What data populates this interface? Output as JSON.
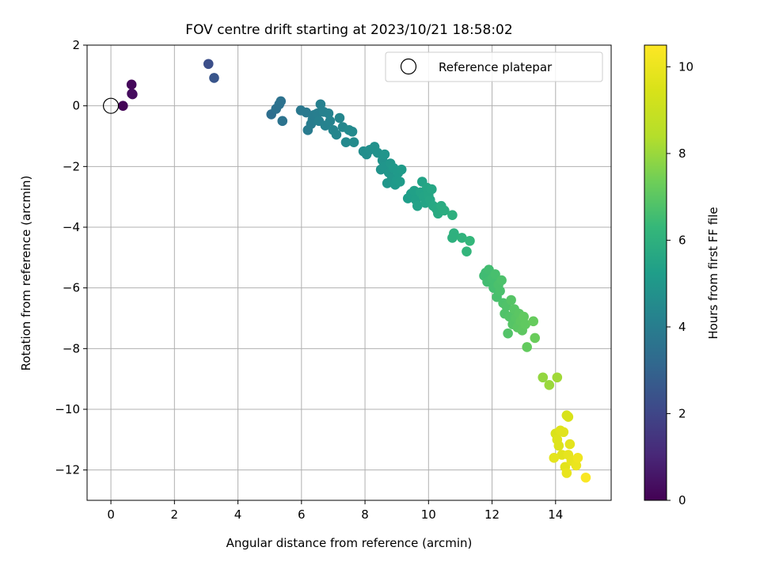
{
  "chart_data": {
    "type": "scatter",
    "title": "FOV centre drift starting at 2023/10/21 18:58:02",
    "xlabel": "Angular distance from reference (arcmin)",
    "ylabel": "Rotation from reference (arcmin)",
    "colorbar_label": "Hours from first FF file",
    "colormap": "viridis",
    "xlim": [
      -0.75,
      15.75
    ],
    "ylim": [
      -13,
      2
    ],
    "clim": [
      0,
      10.5
    ],
    "xticks": [
      0,
      2,
      4,
      6,
      8,
      10,
      12,
      14
    ],
    "yticks": [
      -12,
      -10,
      -8,
      -6,
      -4,
      -2,
      0,
      2
    ],
    "cticks": [
      0,
      2,
      4,
      6,
      8,
      10
    ],
    "grid": true,
    "legend": {
      "position": "top-right",
      "entries": [
        {
          "label": "Reference platepar",
          "marker": "open-circle"
        }
      ]
    },
    "reference_point": {
      "x": 0,
      "y": 0
    },
    "points": [
      {
        "x": 0.38,
        "y": 0.0,
        "c": 0.1
      },
      {
        "x": 0.65,
        "y": 0.7,
        "c": 0.2
      },
      {
        "x": 0.66,
        "y": 0.4,
        "c": 0.25
      },
      {
        "x": 0.68,
        "y": 0.38,
        "c": 0.3
      },
      {
        "x": 3.07,
        "y": 1.38,
        "c": 2.3
      },
      {
        "x": 3.25,
        "y": 0.92,
        "c": 2.5
      },
      {
        "x": 5.05,
        "y": -0.28,
        "c": 3.4
      },
      {
        "x": 5.2,
        "y": -0.1,
        "c": 3.5
      },
      {
        "x": 5.3,
        "y": 0.05,
        "c": 3.5
      },
      {
        "x": 5.35,
        "y": 0.15,
        "c": 3.55
      },
      {
        "x": 5.4,
        "y": -0.5,
        "c": 3.6
      },
      {
        "x": 5.98,
        "y": -0.15,
        "c": 3.8
      },
      {
        "x": 6.15,
        "y": -0.22,
        "c": 3.85
      },
      {
        "x": 6.2,
        "y": -0.8,
        "c": 3.9
      },
      {
        "x": 6.3,
        "y": -0.6,
        "c": 3.95
      },
      {
        "x": 6.35,
        "y": -0.45,
        "c": 4.0
      },
      {
        "x": 6.4,
        "y": -0.3,
        "c": 4.0
      },
      {
        "x": 6.5,
        "y": -0.25,
        "c": 4.05
      },
      {
        "x": 6.55,
        "y": -0.5,
        "c": 4.1
      },
      {
        "x": 6.6,
        "y": 0.05,
        "c": 4.1
      },
      {
        "x": 6.7,
        "y": -0.2,
        "c": 4.15
      },
      {
        "x": 6.75,
        "y": -0.65,
        "c": 4.2
      },
      {
        "x": 6.85,
        "y": -0.25,
        "c": 4.2
      },
      {
        "x": 6.9,
        "y": -0.5,
        "c": 4.25
      },
      {
        "x": 7.0,
        "y": -0.8,
        "c": 4.3
      },
      {
        "x": 7.1,
        "y": -0.95,
        "c": 4.35
      },
      {
        "x": 7.2,
        "y": -0.4,
        "c": 4.35
      },
      {
        "x": 7.3,
        "y": -0.7,
        "c": 4.4
      },
      {
        "x": 7.4,
        "y": -1.2,
        "c": 4.45
      },
      {
        "x": 7.5,
        "y": -0.8,
        "c": 4.5
      },
      {
        "x": 7.6,
        "y": -0.85,
        "c": 4.5
      },
      {
        "x": 7.65,
        "y": -1.2,
        "c": 4.55
      },
      {
        "x": 7.95,
        "y": -1.5,
        "c": 4.6
      },
      {
        "x": 8.05,
        "y": -1.6,
        "c": 4.65
      },
      {
        "x": 8.15,
        "y": -1.45,
        "c": 4.7
      },
      {
        "x": 8.3,
        "y": -1.35,
        "c": 4.75
      },
      {
        "x": 8.4,
        "y": -1.55,
        "c": 4.8
      },
      {
        "x": 8.5,
        "y": -2.1,
        "c": 4.85
      },
      {
        "x": 8.55,
        "y": -1.8,
        "c": 4.85
      },
      {
        "x": 8.6,
        "y": -2.0,
        "c": 4.9
      },
      {
        "x": 8.62,
        "y": -1.6,
        "c": 4.9
      },
      {
        "x": 8.7,
        "y": -2.55,
        "c": 4.95
      },
      {
        "x": 8.75,
        "y": -2.2,
        "c": 4.95
      },
      {
        "x": 8.8,
        "y": -1.9,
        "c": 5.0
      },
      {
        "x": 8.85,
        "y": -2.4,
        "c": 5.0
      },
      {
        "x": 8.9,
        "y": -2.05,
        "c": 5.05
      },
      {
        "x": 8.95,
        "y": -2.6,
        "c": 5.05
      },
      {
        "x": 9.0,
        "y": -2.45,
        "c": 5.1
      },
      {
        "x": 9.05,
        "y": -2.2,
        "c": 5.1
      },
      {
        "x": 9.1,
        "y": -2.5,
        "c": 5.15
      },
      {
        "x": 9.15,
        "y": -2.1,
        "c": 5.15
      },
      {
        "x": 9.35,
        "y": -3.05,
        "c": 5.25
      },
      {
        "x": 9.45,
        "y": -2.9,
        "c": 5.3
      },
      {
        "x": 9.55,
        "y": -2.8,
        "c": 5.35
      },
      {
        "x": 9.6,
        "y": -3.1,
        "c": 5.35
      },
      {
        "x": 9.65,
        "y": -3.3,
        "c": 5.4
      },
      {
        "x": 9.75,
        "y": -2.85,
        "c": 5.45
      },
      {
        "x": 9.8,
        "y": -2.5,
        "c": 5.45
      },
      {
        "x": 9.85,
        "y": -3.0,
        "c": 5.5
      },
      {
        "x": 9.9,
        "y": -3.2,
        "c": 5.5
      },
      {
        "x": 9.95,
        "y": -2.7,
        "c": 5.55
      },
      {
        "x": 10.0,
        "y": -2.95,
        "c": 5.55
      },
      {
        "x": 10.05,
        "y": -3.1,
        "c": 5.6
      },
      {
        "x": 10.1,
        "y": -2.75,
        "c": 5.6
      },
      {
        "x": 10.15,
        "y": -3.3,
        "c": 5.65
      },
      {
        "x": 10.25,
        "y": -3.4,
        "c": 5.7
      },
      {
        "x": 10.3,
        "y": -3.55,
        "c": 5.75
      },
      {
        "x": 10.4,
        "y": -3.3,
        "c": 5.8
      },
      {
        "x": 10.5,
        "y": -3.45,
        "c": 5.85
      },
      {
        "x": 10.75,
        "y": -3.6,
        "c": 5.95
      },
      {
        "x": 10.8,
        "y": -4.2,
        "c": 6.0
      },
      {
        "x": 10.75,
        "y": -4.35,
        "c": 6.0
      },
      {
        "x": 11.05,
        "y": -4.35,
        "c": 6.1
      },
      {
        "x": 11.2,
        "y": -4.8,
        "c": 6.2
      },
      {
        "x": 11.3,
        "y": -4.45,
        "c": 6.25
      },
      {
        "x": 11.75,
        "y": -5.6,
        "c": 6.5
      },
      {
        "x": 11.8,
        "y": -5.5,
        "c": 6.5
      },
      {
        "x": 11.85,
        "y": -5.8,
        "c": 6.55
      },
      {
        "x": 11.9,
        "y": -5.4,
        "c": 6.55
      },
      {
        "x": 12.0,
        "y": -5.7,
        "c": 6.6
      },
      {
        "x": 12.05,
        "y": -6.0,
        "c": 6.6
      },
      {
        "x": 12.1,
        "y": -5.55,
        "c": 6.65
      },
      {
        "x": 12.15,
        "y": -6.3,
        "c": 6.65
      },
      {
        "x": 12.2,
        "y": -5.9,
        "c": 6.7
      },
      {
        "x": 12.25,
        "y": -6.1,
        "c": 6.7
      },
      {
        "x": 12.3,
        "y": -5.75,
        "c": 6.75
      },
      {
        "x": 12.35,
        "y": -6.5,
        "c": 6.75
      },
      {
        "x": 12.4,
        "y": -6.85,
        "c": 6.8
      },
      {
        "x": 12.45,
        "y": -6.6,
        "c": 6.8
      },
      {
        "x": 12.5,
        "y": -7.5,
        "c": 6.85
      },
      {
        "x": 12.55,
        "y": -6.95,
        "c": 6.85
      },
      {
        "x": 12.6,
        "y": -6.4,
        "c": 6.9
      },
      {
        "x": 12.65,
        "y": -7.2,
        "c": 6.9
      },
      {
        "x": 12.7,
        "y": -6.7,
        "c": 6.95
      },
      {
        "x": 12.75,
        "y": -7.0,
        "c": 6.95
      },
      {
        "x": 12.8,
        "y": -7.3,
        "c": 7.0
      },
      {
        "x": 12.85,
        "y": -6.85,
        "c": 7.0
      },
      {
        "x": 12.9,
        "y": -7.1,
        "c": 7.05
      },
      {
        "x": 12.95,
        "y": -7.4,
        "c": 7.05
      },
      {
        "x": 13.0,
        "y": -6.95,
        "c": 7.1
      },
      {
        "x": 13.05,
        "y": -7.2,
        "c": 7.1
      },
      {
        "x": 13.1,
        "y": -7.95,
        "c": 7.15
      },
      {
        "x": 13.3,
        "y": -7.1,
        "c": 7.2
      },
      {
        "x": 13.35,
        "y": -7.65,
        "c": 7.25
      },
      {
        "x": 13.6,
        "y": -8.95,
        "c": 7.9
      },
      {
        "x": 13.8,
        "y": -9.2,
        "c": 8.0
      },
      {
        "x": 14.05,
        "y": -8.95,
        "c": 8.1
      },
      {
        "x": 14.0,
        "y": -10.8,
        "c": 9.5
      },
      {
        "x": 14.05,
        "y": -11.0,
        "c": 9.6
      },
      {
        "x": 14.1,
        "y": -11.2,
        "c": 9.6
      },
      {
        "x": 14.15,
        "y": -10.7,
        "c": 9.65
      },
      {
        "x": 14.2,
        "y": -11.5,
        "c": 9.7
      },
      {
        "x": 14.25,
        "y": -10.75,
        "c": 9.7
      },
      {
        "x": 14.3,
        "y": -11.9,
        "c": 9.75
      },
      {
        "x": 14.35,
        "y": -10.2,
        "c": 9.4
      },
      {
        "x": 14.4,
        "y": -10.25,
        "c": 9.45
      },
      {
        "x": 14.35,
        "y": -12.1,
        "c": 9.9
      },
      {
        "x": 14.4,
        "y": -11.5,
        "c": 9.85
      },
      {
        "x": 14.45,
        "y": -11.15,
        "c": 9.8
      },
      {
        "x": 13.95,
        "y": -11.6,
        "c": 9.8
      },
      {
        "x": 14.5,
        "y": -11.7,
        "c": 9.9
      },
      {
        "x": 14.65,
        "y": -11.85,
        "c": 10.0
      },
      {
        "x": 14.7,
        "y": -11.6,
        "c": 10.1
      },
      {
        "x": 14.95,
        "y": -12.25,
        "c": 10.4
      }
    ]
  }
}
